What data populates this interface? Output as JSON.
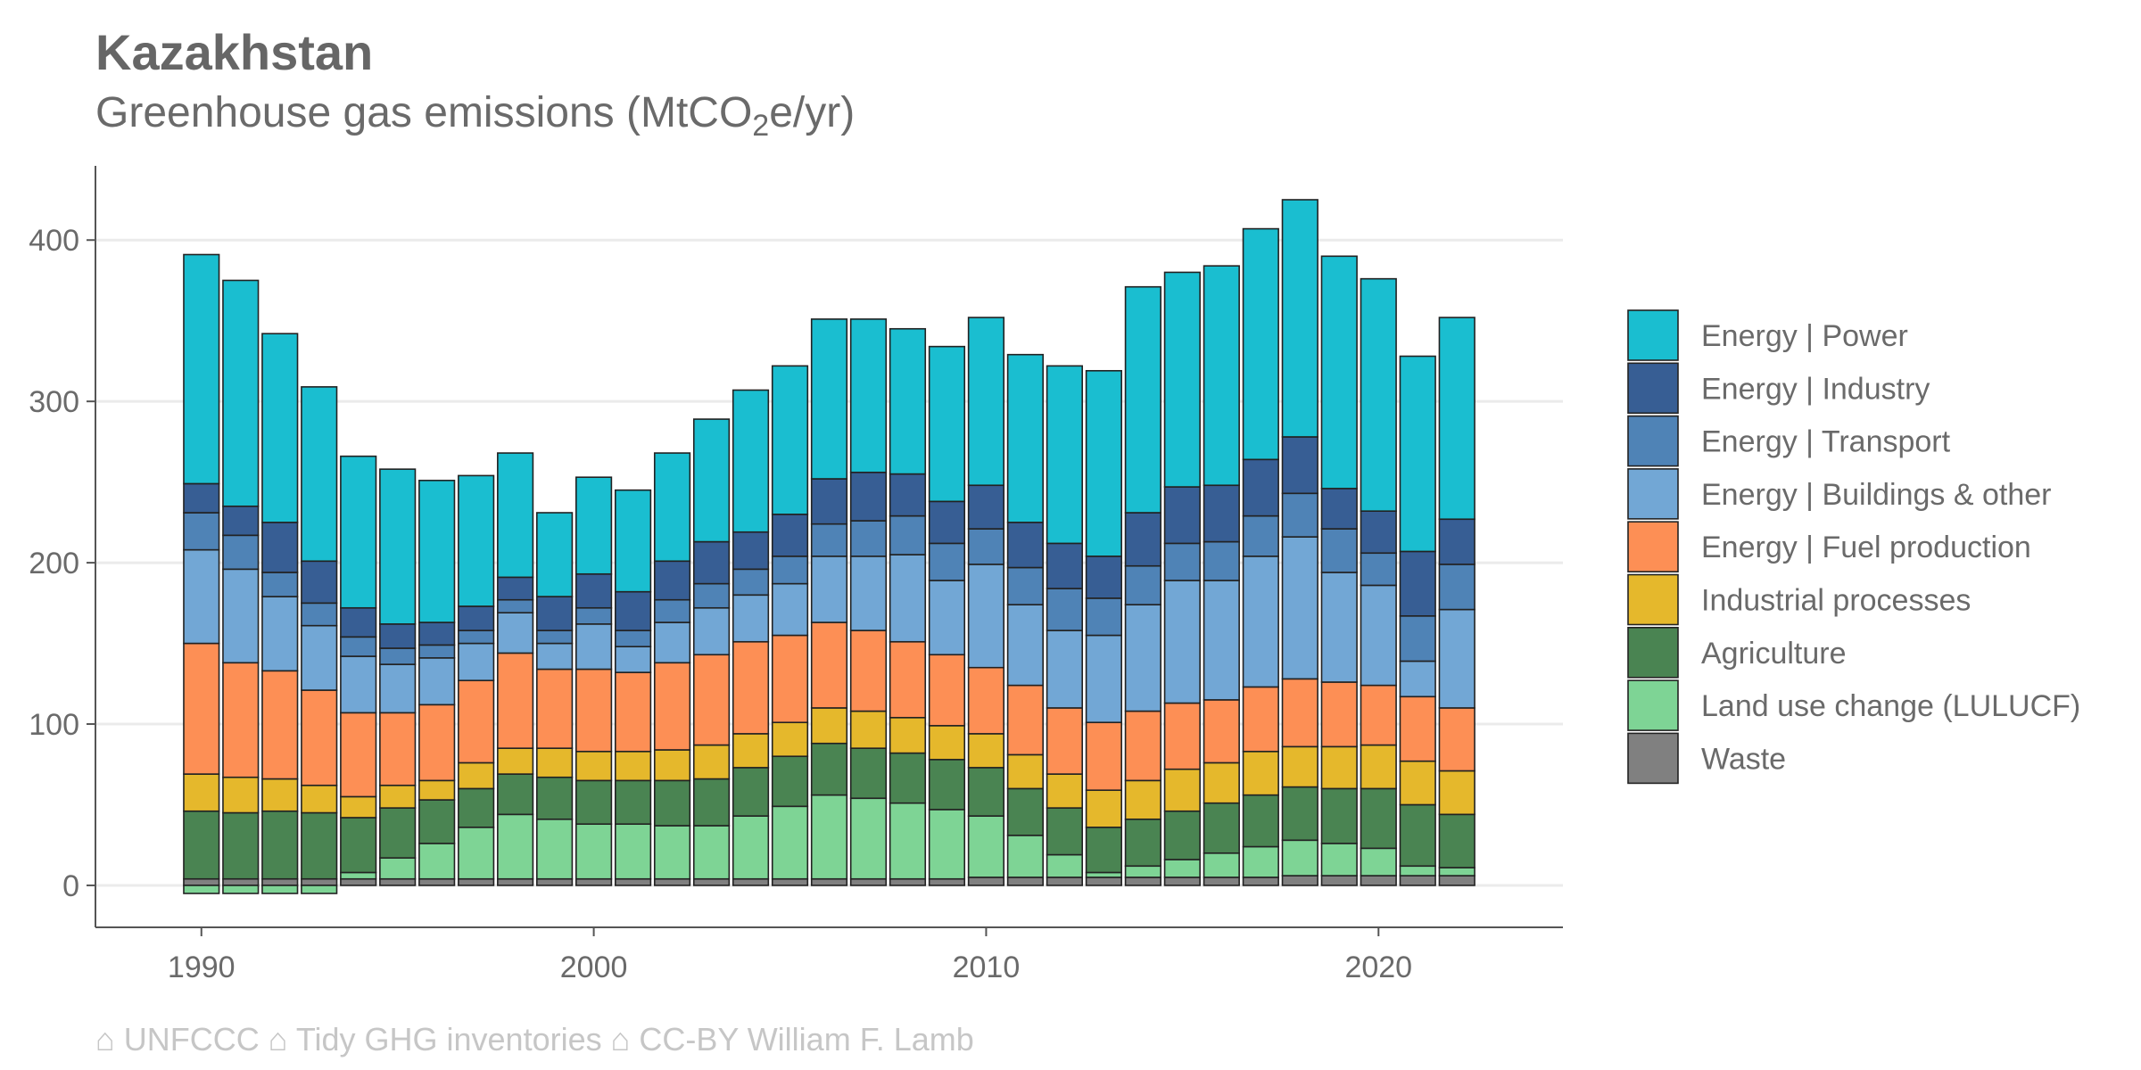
{
  "chart_data": {
    "type": "bar",
    "stacked": true,
    "title": "Kazakhstan",
    "subtitle": "Greenhouse gas emissions (MtCO",
    "subtitle_sub": "2",
    "subtitle_end": "e/yr)",
    "caption": "⌂ UNFCCC  ⌂ Tidy GHG inventories  ⌂ CC-BY William F. Lamb",
    "x": [
      1990,
      1991,
      1992,
      1993,
      1994,
      1995,
      1996,
      1997,
      1998,
      1999,
      2000,
      2001,
      2002,
      2003,
      2004,
      2005,
      2006,
      2007,
      2008,
      2009,
      2010,
      2011,
      2012,
      2013,
      2014,
      2015,
      2016,
      2017,
      2018,
      2019,
      2020,
      2021,
      2022
    ],
    "x_ticks": [
      1990,
      2000,
      2010,
      2020
    ],
    "y_ticks": [
      0,
      100,
      200,
      300,
      400
    ],
    "xlim": [
      1987.3,
      2024.7
    ],
    "ylim": [
      -26,
      446
    ],
    "grid": "horizontal",
    "legend_position": "right",
    "series": [
      {
        "name": "Waste",
        "color": "#808080",
        "values": [
          4,
          4,
          4,
          4,
          4,
          4,
          4,
          4,
          4,
          4,
          4,
          4,
          4,
          4,
          4,
          4,
          4,
          4,
          4,
          4,
          5,
          5,
          5,
          5,
          5,
          5,
          5,
          5,
          6,
          6,
          6,
          6,
          6
        ]
      },
      {
        "name": "Land use change (LULUCF)",
        "color": "#7ed495",
        "values": [
          -5,
          -5,
          -5,
          -5,
          4,
          13,
          22,
          32,
          40,
          37,
          34,
          34,
          33,
          33,
          39,
          45,
          52,
          50,
          47,
          43,
          38,
          26,
          14,
          3,
          7,
          11,
          15,
          19,
          22,
          20,
          17,
          6,
          5
        ]
      },
      {
        "name": "Agriculture",
        "color": "#4a8452",
        "values": [
          42,
          41,
          42,
          41,
          34,
          31,
          27,
          24,
          25,
          26,
          27,
          27,
          28,
          29,
          30,
          31,
          32,
          31,
          31,
          31,
          30,
          29,
          29,
          28,
          29,
          30,
          31,
          32,
          33,
          34,
          37,
          38,
          33
        ]
      },
      {
        "name": "Industrial processes",
        "color": "#e5b82c",
        "values": [
          23,
          22,
          20,
          17,
          13,
          14,
          12,
          16,
          16,
          18,
          18,
          18,
          19,
          21,
          21,
          21,
          22,
          23,
          22,
          21,
          21,
          21,
          21,
          23,
          24,
          26,
          25,
          27,
          25,
          26,
          27,
          27,
          27
        ]
      },
      {
        "name": "Energy | Fuel production",
        "color": "#fd8f55",
        "values": [
          81,
          71,
          67,
          59,
          52,
          45,
          47,
          51,
          59,
          49,
          51,
          49,
          54,
          56,
          57,
          54,
          53,
          50,
          47,
          44,
          41,
          43,
          41,
          42,
          43,
          41,
          39,
          40,
          42,
          40,
          37,
          40,
          39
        ]
      },
      {
        "name": "Energy | Buildings & other",
        "color": "#72a7d5",
        "values": [
          58,
          58,
          46,
          40,
          35,
          30,
          29,
          23,
          25,
          16,
          28,
          16,
          25,
          29,
          29,
          32,
          41,
          46,
          54,
          46,
          64,
          50,
          48,
          54,
          66,
          76,
          74,
          81,
          88,
          68,
          62,
          22,
          61
        ]
      },
      {
        "name": "Energy | Transport",
        "color": "#4f83b6",
        "values": [
          23,
          21,
          15,
          14,
          12,
          10,
          8,
          8,
          8,
          8,
          10,
          10,
          14,
          15,
          16,
          17,
          20,
          22,
          24,
          23,
          22,
          23,
          26,
          23,
          24,
          23,
          24,
          25,
          27,
          27,
          20,
          28,
          28
        ]
      },
      {
        "name": "Energy | Industry",
        "color": "#375e94",
        "values": [
          18,
          18,
          31,
          26,
          18,
          15,
          14,
          15,
          14,
          21,
          21,
          24,
          24,
          26,
          23,
          26,
          28,
          30,
          26,
          26,
          27,
          28,
          28,
          26,
          33,
          35,
          35,
          35,
          35,
          25,
          26,
          40,
          28
        ]
      },
      {
        "name": "Energy | Power",
        "color": "#1abed0",
        "values": [
          142,
          140,
          117,
          108,
          94,
          96,
          88,
          81,
          77,
          52,
          60,
          63,
          67,
          76,
          88,
          92,
          99,
          95,
          90,
          96,
          104,
          104,
          110,
          115,
          140,
          133,
          136,
          143,
          147,
          144,
          144,
          121,
          125
        ]
      }
    ],
    "legend_order": [
      "Energy | Power",
      "Energy | Industry",
      "Energy | Transport",
      "Energy | Buildings & other",
      "Energy | Fuel production",
      "Industrial processes",
      "Agriculture",
      "Land use change (LULUCF)",
      "Waste"
    ]
  }
}
